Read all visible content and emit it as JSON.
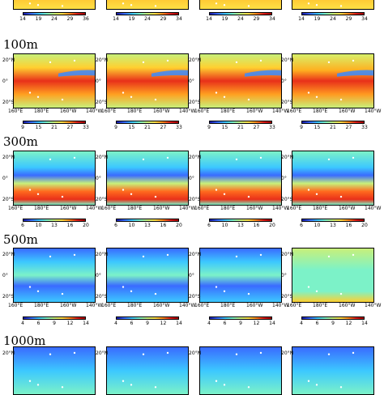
{
  "chart_data": {
    "type": "heatmap",
    "colormap": [
      "#1a1aa8",
      "#3a6bff",
      "#3cc8ff",
      "#7cf2c8",
      "#c8f07a",
      "#ffe046",
      "#ff8a1e",
      "#e01e1e",
      "#a00000"
    ],
    "x_ticks": [
      "160°E",
      "180°E",
      "160°W",
      "140°W"
    ],
    "y_ticks": [
      "20°N",
      "0°",
      "20°S"
    ],
    "rows": [
      {
        "depth": "",
        "colorbars": [
          {
            "ticks": [
              "14",
              "19",
              "24",
              "29",
              "36"
            ]
          },
          {
            "ticks": [
              "14",
              "19",
              "24",
              "29",
              "34"
            ]
          },
          {
            "ticks": [
              "14",
              "19",
              "24",
              "29",
              "34"
            ]
          },
          {
            "ticks": [
              "14",
              "19",
              "24",
              "29",
              "34"
            ]
          }
        ]
      },
      {
        "depth": "100m",
        "colorbars": [
          {
            "ticks": [
              "9",
              "15",
              "21",
              "27",
              "33"
            ]
          },
          {
            "ticks": [
              "9",
              "15",
              "21",
              "27",
              "33"
            ]
          },
          {
            "ticks": [
              "9",
              "15",
              "21",
              "27",
              "33"
            ]
          },
          {
            "ticks": [
              "9",
              "15",
              "21",
              "27",
              "33"
            ]
          }
        ]
      },
      {
        "depth": "300m",
        "colorbars": [
          {
            "ticks": [
              "6",
              "10",
              "13",
              "16",
              "20"
            ]
          },
          {
            "ticks": [
              "6",
              "10",
              "13",
              "16",
              "20"
            ]
          },
          {
            "ticks": [
              "6",
              "10",
              "13",
              "16",
              "20"
            ]
          },
          {
            "ticks": [
              "6",
              "10",
              "13",
              "16",
              "20"
            ]
          }
        ]
      },
      {
        "depth": "500m",
        "colorbars": [
          {
            "ticks": [
              "4",
              "6",
              "9",
              "12",
              "14"
            ]
          },
          {
            "ticks": [
              "4",
              "6",
              "9",
              "12",
              "14"
            ]
          },
          {
            "ticks": [
              "4",
              "6",
              "9",
              "12",
              "14"
            ]
          },
          {
            "ticks": [
              "4",
              "6",
              "9",
              "12",
              "14"
            ]
          }
        ]
      },
      {
        "depth": "1000m",
        "colorbars": []
      }
    ]
  }
}
